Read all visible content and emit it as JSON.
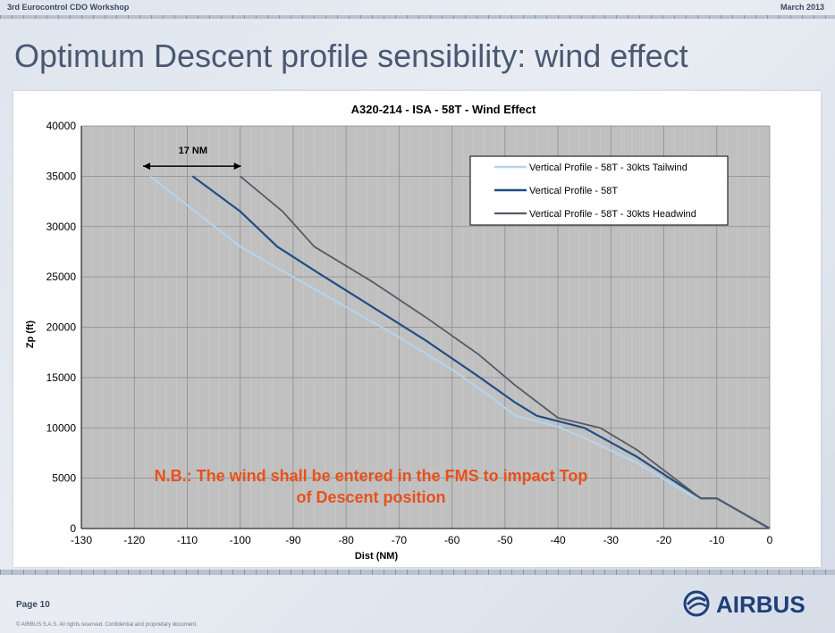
{
  "header": {
    "left": "3rd Eurocontrol CDO Workshop",
    "right": "March 2013"
  },
  "slide_title": "Optimum Descent profile sensibility: wind effect",
  "footer": {
    "page": "Page 10",
    "copyright": "© AIRBUS S.A.S. All rights reserved. Confidential and proprietary document.",
    "logo_text": "AIRBUS"
  },
  "chart_data": {
    "type": "line",
    "title": "A320-214  - ISA - 58T - Wind Effect",
    "xlabel": "Dist (NM)",
    "ylabel": "Zp (ft)",
    "xlim": [
      -130,
      0
    ],
    "ylim": [
      0,
      40000
    ],
    "xticks": [
      -130,
      -120,
      -110,
      -100,
      -90,
      -80,
      -70,
      -60,
      -50,
      -40,
      -30,
      -20,
      -10,
      0
    ],
    "yticks": [
      0,
      5000,
      10000,
      15000,
      20000,
      25000,
      30000,
      35000,
      40000
    ],
    "grid": true,
    "legend_position": "top-right",
    "series": [
      {
        "name": "Vertical Profile - 58T - 30kts Tailwind",
        "color": "#b4d4f0",
        "stroke": 2,
        "points": [
          [
            -117,
            35000
          ],
          [
            -100,
            28000
          ],
          [
            -90,
            25000
          ],
          [
            -80,
            22000
          ],
          [
            -70,
            19000
          ],
          [
            -60,
            15800
          ],
          [
            -53,
            13200
          ],
          [
            -48,
            11200
          ],
          [
            -40,
            10100
          ],
          [
            -35,
            9000
          ],
          [
            -25,
            6500
          ],
          [
            -14,
            3000
          ],
          [
            -10,
            3000
          ],
          [
            0,
            0
          ]
        ]
      },
      {
        "name": "Vertical Profile - 58T",
        "color": "#1f4e86",
        "stroke": 2.2,
        "points": [
          [
            -109,
            35000
          ],
          [
            -100,
            31500
          ],
          [
            -93,
            28000
          ],
          [
            -85,
            25300
          ],
          [
            -75,
            22000
          ],
          [
            -65,
            18700
          ],
          [
            -55,
            15100
          ],
          [
            -48,
            12500
          ],
          [
            -44,
            11200
          ],
          [
            -35,
            10000
          ],
          [
            -25,
            7100
          ],
          [
            -13,
            3000
          ],
          [
            -10,
            3000
          ],
          [
            0,
            0
          ]
        ]
      },
      {
        "name": "Vertical Profile - 58T - 30kts Headwind",
        "color": "#555a66",
        "stroke": 1.8,
        "points": [
          [
            -100,
            35000
          ],
          [
            -92,
            31500
          ],
          [
            -86,
            28000
          ],
          [
            -75,
            24500
          ],
          [
            -65,
            21000
          ],
          [
            -55,
            17300
          ],
          [
            -48,
            14200
          ],
          [
            -40,
            11000
          ],
          [
            -32,
            10000
          ],
          [
            -25,
            7800
          ],
          [
            -13,
            3000
          ],
          [
            -10,
            3000
          ],
          [
            0,
            0
          ]
        ]
      }
    ],
    "annotations": {
      "distance_label": "17 NM",
      "arrow_from": -117,
      "arrow_to": -100,
      "arrow_alt": 36000,
      "note": [
        "N.B.: The wind shall be entered in the FMS to impact Top",
        "of Descent position"
      ],
      "note_color": "#e8501a"
    }
  }
}
